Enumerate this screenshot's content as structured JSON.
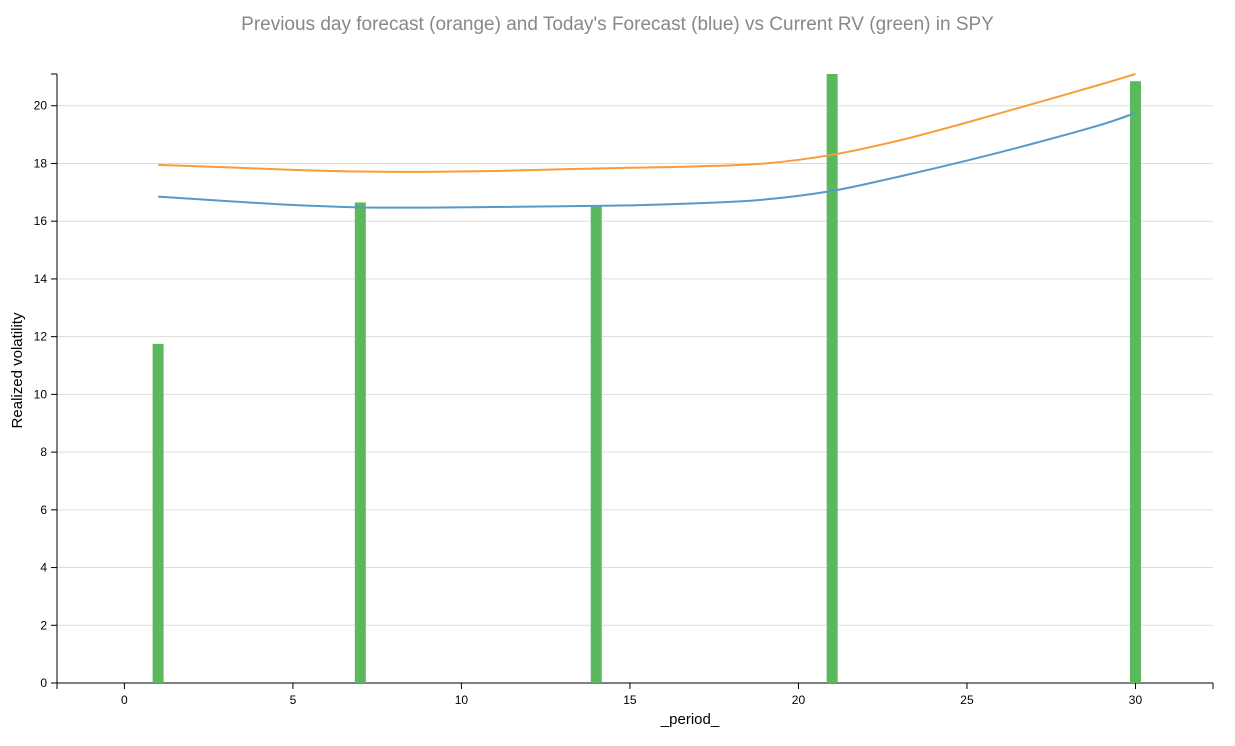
{
  "chart_data": {
    "type": "bar",
    "title": "Previous day forecast (orange) and Today's Forecast (blue) vs Current RV (green) in SPY",
    "xlabel": "_period_",
    "ylabel": "Realized volatility",
    "xlim": [
      -2,
      32.3
    ],
    "ylim": [
      0,
      21.1
    ],
    "x_ticks": [
      0,
      5,
      10,
      15,
      20,
      25,
      30
    ],
    "y_ticks": [
      0,
      2,
      4,
      6,
      8,
      10,
      12,
      14,
      16,
      18,
      20
    ],
    "grid": true,
    "colors": {
      "bars": "#5cb85c",
      "previous_forecast": "#f89c3c",
      "todays_forecast": "#5899c8",
      "grid": "#dddddd",
      "axis": "#000000"
    },
    "bars": [
      {
        "x": 1,
        "value": 11.75
      },
      {
        "x": 7,
        "value": 16.65
      },
      {
        "x": 14,
        "value": 16.55
      },
      {
        "x": 21,
        "value": 21.1
      },
      {
        "x": 30,
        "value": 20.85
      }
    ],
    "series": [
      {
        "color": "orange",
        "x": [
          1,
          3,
          5,
          7,
          9,
          11,
          13,
          15,
          17,
          19,
          21,
          23,
          25,
          27,
          29,
          30
        ],
        "values": [
          17.95,
          17.87,
          17.78,
          17.72,
          17.71,
          17.74,
          17.8,
          17.85,
          17.9,
          18.0,
          18.3,
          18.8,
          19.42,
          20.08,
          20.75,
          21.1
        ]
      },
      {
        "color": "blue",
        "x": [
          1,
          3,
          5,
          7,
          9,
          11,
          13,
          15,
          17,
          19,
          21,
          23,
          25,
          27,
          29,
          30
        ],
        "values": [
          16.85,
          16.7,
          16.56,
          16.48,
          16.47,
          16.49,
          16.52,
          16.55,
          16.62,
          16.75,
          17.05,
          17.55,
          18.1,
          18.7,
          19.35,
          19.75
        ]
      }
    ]
  }
}
